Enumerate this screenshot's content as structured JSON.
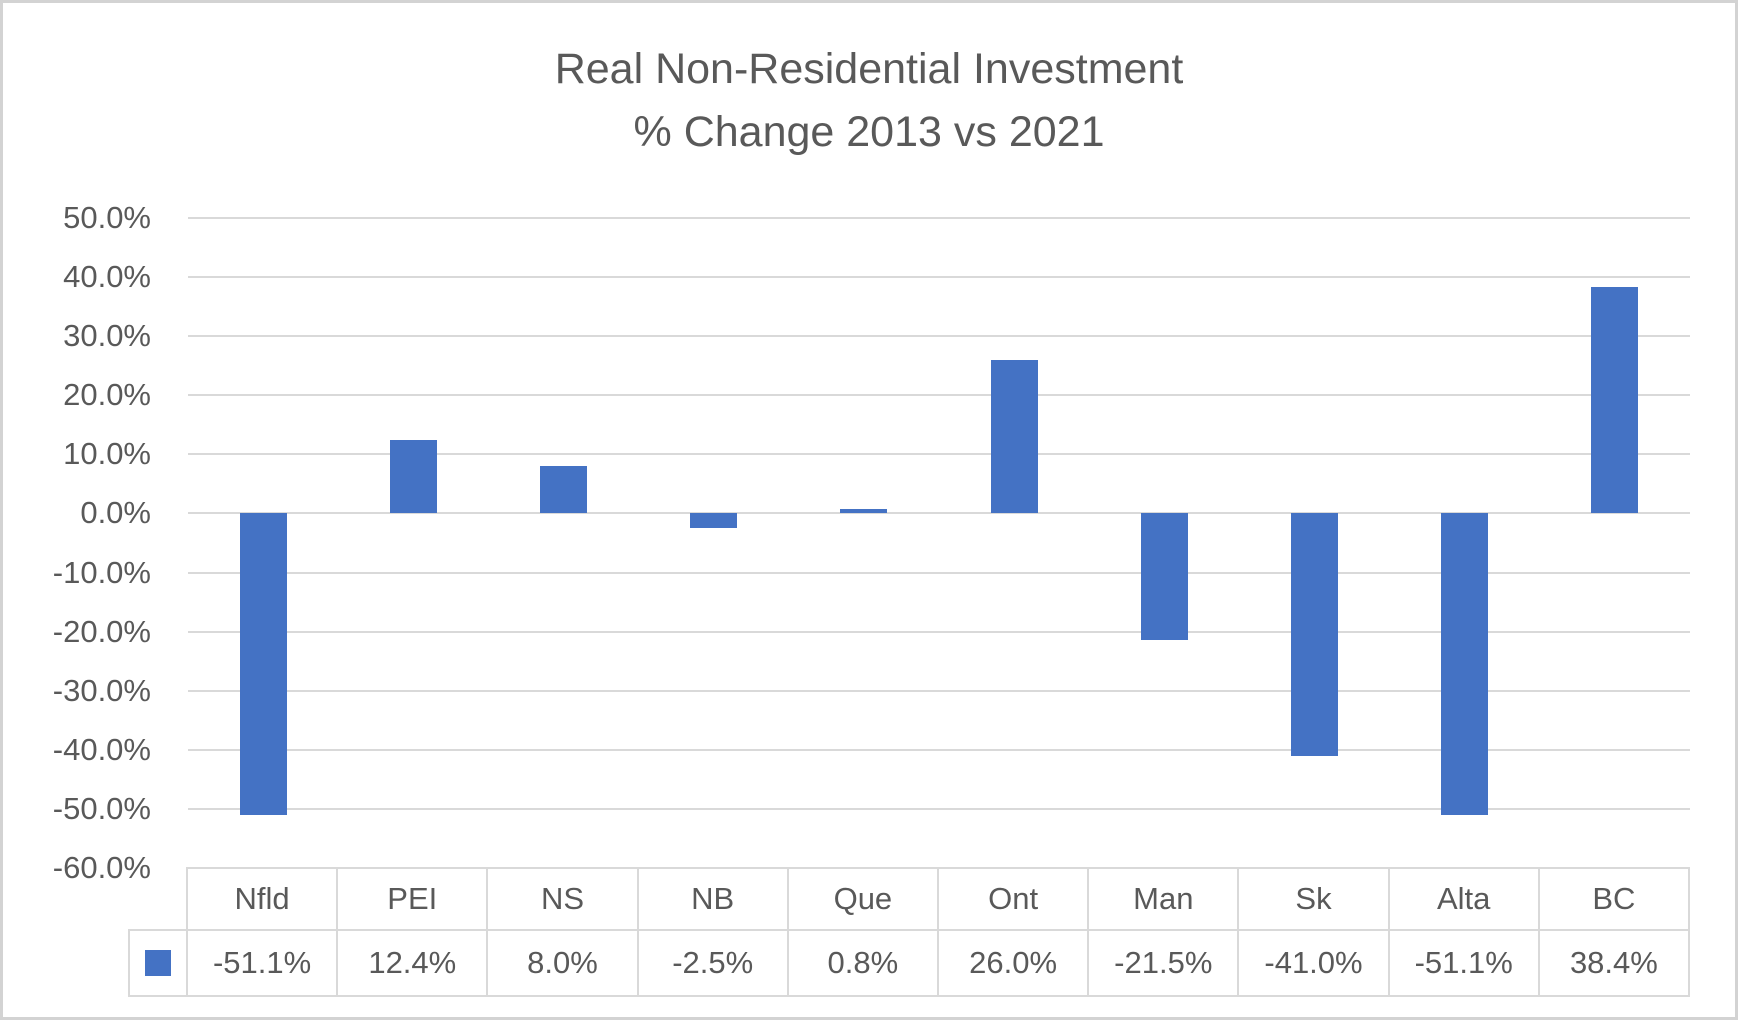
{
  "title": {
    "line1": "Real Non-Residential Investment",
    "line2": "% Change 2013 vs 2021"
  },
  "chart_data": {
    "type": "bar",
    "title": "Real Non-Residential Investment % Change 2013 vs 2021",
    "xlabel": "",
    "ylabel": "",
    "categories": [
      "Nfld",
      "PEI",
      "NS",
      "NB",
      "Que",
      "Ont",
      "Man",
      "Sk",
      "Alta",
      "BC"
    ],
    "values": [
      -51.1,
      12.4,
      8.0,
      -2.5,
      0.8,
      26.0,
      -21.5,
      -41.0,
      -51.1,
      38.4
    ],
    "value_labels": [
      "-51.1%",
      "12.4%",
      "8.0%",
      "-2.5%",
      "0.8%",
      "26.0%",
      "-21.5%",
      "-41.0%",
      "-51.1%",
      "38.4%"
    ],
    "y_ticks": [
      "50.0%",
      "40.0%",
      "30.0%",
      "20.0%",
      "10.0%",
      "0.0%",
      "-10.0%",
      "-20.0%",
      "-30.0%",
      "-40.0%",
      "-50.0%",
      "-60.0%"
    ],
    "y_tick_values": [
      50,
      40,
      30,
      20,
      10,
      0,
      -10,
      -20,
      -30,
      -40,
      -50,
      -60
    ],
    "ylim": [
      -60,
      50
    ],
    "grid": true,
    "legend_position": "data-table-left-key",
    "data_table_shown": true
  },
  "colors": {
    "bar": "#4472C4",
    "gridline": "#D9D9D9",
    "text": "#595959",
    "table_border": "#D9D9D9",
    "frame_border": "#D3D3D3"
  }
}
